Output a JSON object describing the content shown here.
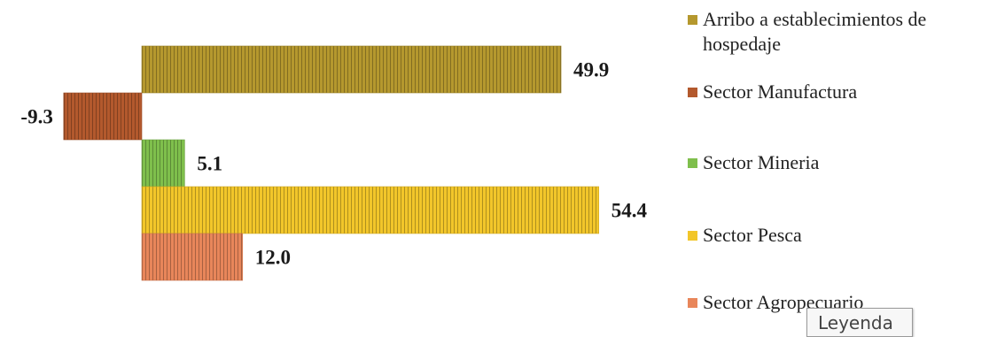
{
  "chart_data": {
    "type": "bar",
    "orientation": "horizontal",
    "series": [
      {
        "name": "Arribo a establecimientos de hospedaje",
        "value": 49.9,
        "label": "49.9",
        "color": "#b5982e",
        "legend_lines": [
          "Arribo a establecimientos de",
          "hospedaje"
        ]
      },
      {
        "name": "Sector Manufactura",
        "value": -9.3,
        "label": "-9.3",
        "color": "#b3592d",
        "legend_lines": [
          "Sector Manufactura"
        ]
      },
      {
        "name": "Sector Mineria",
        "value": 5.1,
        "label": "5.1",
        "color": "#7fbf4c",
        "legend_lines": [
          "Sector Mineria"
        ]
      },
      {
        "name": "Sector Pesca",
        "value": 54.4,
        "label": "54.4",
        "color": "#f2c62a",
        "legend_lines": [
          "Sector Pesca"
        ]
      },
      {
        "name": "Sector Agropecuario",
        "value": 12.0,
        "label": "12.0",
        "color": "#e8865a",
        "legend_lines": [
          "Sector Agropecuario"
        ]
      }
    ],
    "legend_position": "right",
    "grid": false,
    "xlim": [
      -9.3,
      54.4
    ]
  },
  "tooltip": {
    "text": "Leyenda"
  }
}
